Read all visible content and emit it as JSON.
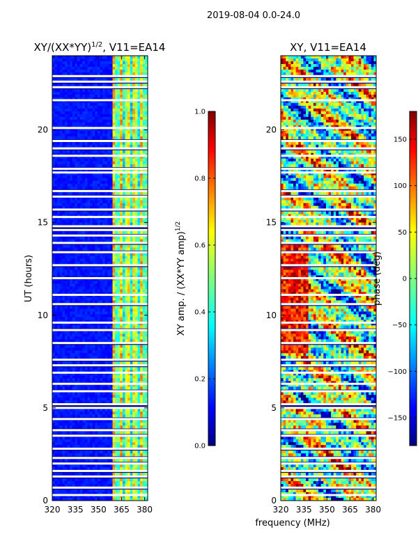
{
  "suptitle": "2019-08-04 0.0-24.0",
  "colors": {
    "jet": [
      "#00007f",
      "#0000ff",
      "#007fff",
      "#00ffff",
      "#7fff7f",
      "#ffff00",
      "#ff7f00",
      "#ff0000",
      "#7f0000"
    ]
  },
  "chart_data": [
    {
      "type": "heatmap",
      "title_main": "XY/(XX*YY)",
      "title_sup": "1/2",
      "title_tail": ", V11=EA14",
      "xlabel": "",
      "ylabel": "UT (hours)",
      "xlim": [
        320,
        382
      ],
      "ylim": [
        0,
        24
      ],
      "xticks": [
        320,
        335,
        350,
        365,
        380
      ],
      "yticks": [
        0,
        5,
        10,
        15,
        20
      ],
      "signal_band_mhz": [
        359,
        381
      ],
      "colorbar": {
        "label_main": "XY amp. / (XX*YY amp)",
        "label_sup": "1/2",
        "range": [
          0.0,
          1.0
        ],
        "ticks": [
          "0.0",
          "0.2",
          "0.4",
          "0.6",
          "0.8",
          "1.0"
        ],
        "tick_values": [
          0.0,
          0.2,
          0.4,
          0.6,
          0.8,
          1.0
        ]
      }
    },
    {
      "type": "heatmap",
      "title": "XY, V11=EA14",
      "xlabel": "frequency (MHz)",
      "ylabel": "",
      "xlim": [
        320,
        382
      ],
      "ylim": [
        0,
        24
      ],
      "xticks": [
        320,
        335,
        350,
        365,
        380
      ],
      "yticks": [
        0,
        5,
        10,
        15,
        20
      ],
      "colorbar": {
        "label": "phase (deg)",
        "range": [
          -180,
          180
        ],
        "ticks": [
          "150",
          "100",
          "50",
          "0",
          "−50",
          "−100",
          "−150"
        ],
        "tick_values": [
          150,
          100,
          50,
          0,
          -50,
          -100,
          -150
        ]
      }
    }
  ],
  "flagged_hours": [
    0.3,
    0.7,
    1.3,
    1.6,
    2.0,
    2.3,
    2.8,
    3.5,
    3.8,
    4.4,
    5.0,
    5.2,
    5.9,
    6.3,
    6.9,
    7.3,
    7.6,
    8.5,
    9.2,
    9.6,
    10.6,
    11.1,
    12.0,
    12.7,
    13.4,
    13.9,
    14.3,
    14.6,
    14.8,
    15.3,
    15.7,
    16.4,
    16.7,
    17.7,
    17.9,
    18.6,
    19.0,
    19.4,
    20.1,
    21.6,
    22.3,
    22.6,
    22.9
  ]
}
